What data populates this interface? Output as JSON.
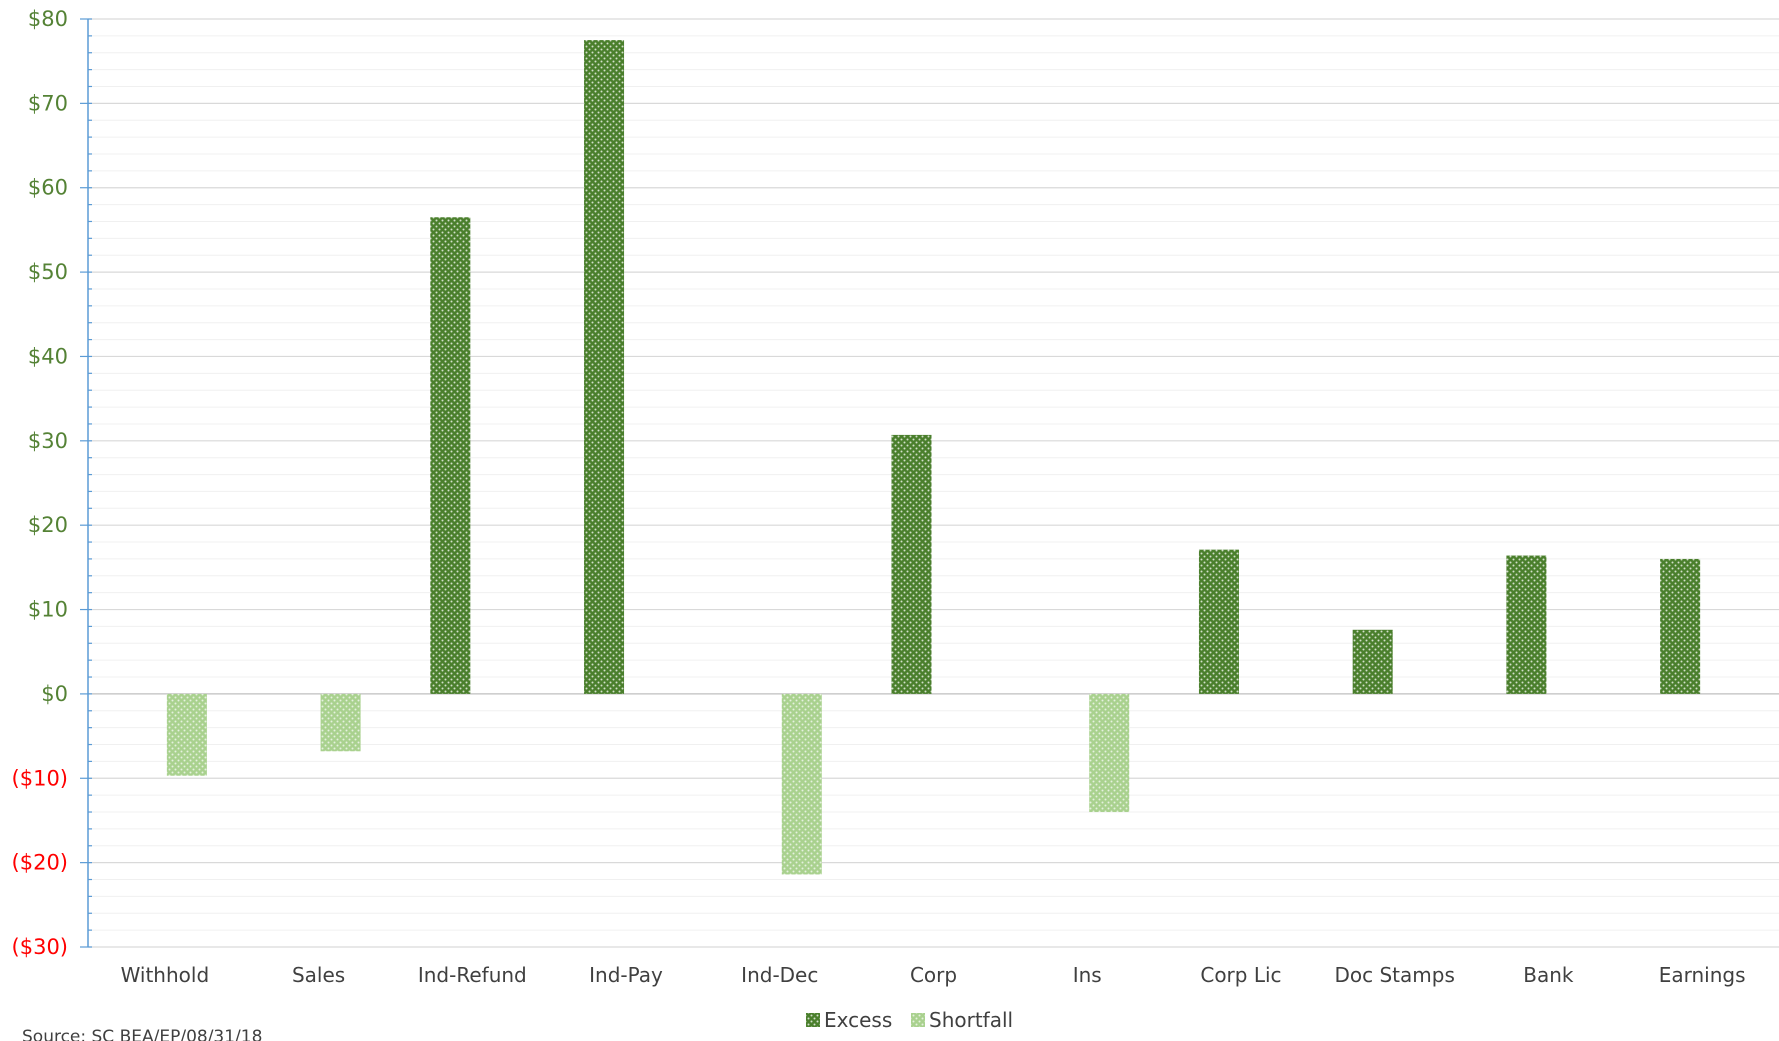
{
  "chart_data": {
    "type": "bar",
    "title": "",
    "xlabel": "",
    "ylabel": "",
    "categories": [
      "Withhold",
      "Sales",
      "Ind-Refund",
      "Ind-Pay",
      "Ind-Dec",
      "Corp",
      "Ins",
      "Corp Lic",
      "Doc Stamps",
      "Bank",
      "Earnings"
    ],
    "series": [
      {
        "name": "Excess",
        "color": "#4a7f2c",
        "values": [
          0,
          0,
          56.5,
          77.5,
          0,
          30.7,
          0,
          17.1,
          7.6,
          16.4,
          16.0
        ]
      },
      {
        "name": "Shortfall",
        "color": "#a9d18e",
        "values": [
          -9.7,
          -6.8,
          0,
          0,
          -21.4,
          0,
          -14.0,
          0,
          0,
          0,
          0
        ]
      }
    ],
    "ylim": [
      -30,
      80
    ],
    "y_ticks": [
      {
        "value": 80,
        "label": "$80"
      },
      {
        "value": 70,
        "label": "$70"
      },
      {
        "value": 60,
        "label": "$60"
      },
      {
        "value": 50,
        "label": "$50"
      },
      {
        "value": 40,
        "label": "$40"
      },
      {
        "value": 30,
        "label": "$30"
      },
      {
        "value": 20,
        "label": "$20"
      },
      {
        "value": 10,
        "label": "$10"
      },
      {
        "value": 0,
        "label": "$0"
      },
      {
        "value": -10,
        "label": "($10)"
      },
      {
        "value": -20,
        "label": "($20)"
      },
      {
        "value": -30,
        "label": "($30)"
      }
    ],
    "positive_tick_color": "#548235",
    "negative_tick_color": "#ff0000",
    "grid": true,
    "legend": "bottom-center"
  },
  "source_note": "Source:  SC BEA/EP/08/31/18"
}
